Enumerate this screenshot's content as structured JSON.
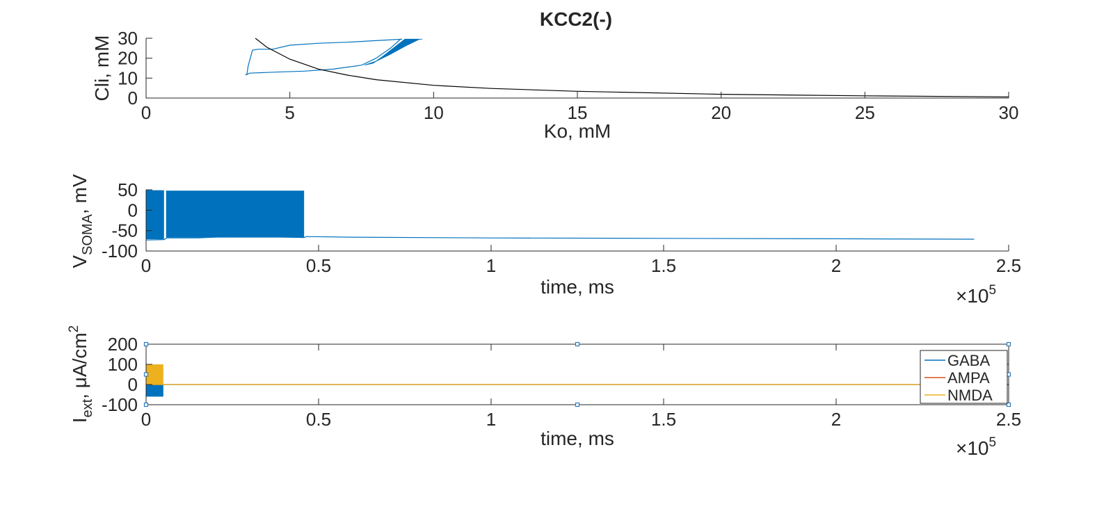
{
  "figure": {
    "title": "KCC2(-)",
    "background": "#ffffff",
    "axis_color": "#262626"
  },
  "chart_data": [
    {
      "type": "line",
      "id": "cli-vs-ko",
      "title": "KCC2(-)",
      "xlabel": "Ko, mM",
      "ylabel": "Cli, mM",
      "xlim": [
        0,
        30
      ],
      "ylim": [
        0,
        30
      ],
      "xticks": [
        0,
        5,
        10,
        15,
        20,
        25,
        30
      ],
      "yticks": [
        0,
        10,
        20,
        30
      ],
      "xtick_labels": [
        "0",
        "5",
        "10",
        "15",
        "20",
        "25",
        "30"
      ],
      "ytick_labels": [
        "0",
        "10",
        "20",
        "30"
      ],
      "grid": false,
      "series": [
        {
          "color": "#0072bd",
          "style": "trajectory",
          "x": [
            3.5,
            3.55,
            3.7,
            3.9,
            4.2,
            4.4,
            5.0,
            6.0,
            7.0,
            8.0,
            8.9,
            8.85,
            8.5,
            8.0,
            7.5,
            6.5,
            5.5,
            4.5,
            3.6,
            3.45
          ],
          "y": [
            11.5,
            16,
            24,
            24.5,
            24.5,
            24.5,
            26.5,
            27.5,
            28,
            28.8,
            29.5,
            29.5,
            25,
            20,
            16.5,
            14.5,
            13.5,
            13,
            12.5,
            11.5
          ]
        },
        {
          "color": "#0072bd",
          "style": "band",
          "x": [
            7.6,
            8.0,
            8.5,
            9.0,
            9.5,
            9.6,
            9.0,
            8.6,
            8.2,
            7.9
          ],
          "y": [
            16.5,
            18.5,
            22,
            26,
            29.5,
            29.5,
            29.5,
            25,
            20.5,
            17.5
          ]
        },
        {
          "color": "#000000",
          "style": "line",
          "x": [
            3.8,
            4.2,
            5,
            6,
            7,
            8,
            10,
            12,
            15,
            20,
            25,
            30
          ],
          "y": [
            30,
            25.5,
            19.5,
            14.5,
            11.5,
            9.2,
            6.4,
            4.8,
            3.4,
            1.9,
            1.1,
            0.6
          ]
        }
      ]
    },
    {
      "type": "line",
      "id": "vsoma-vs-time",
      "xlabel": "time, ms",
      "ylabel_main": "V",
      "ylabel_sub": "SOMA",
      "ylabel_tail": ", mV",
      "xlim": [
        0,
        250000
      ],
      "ylim": [
        -100,
        50
      ],
      "xticks": [
        0,
        50000,
        100000,
        150000,
        200000,
        250000
      ],
      "yticks": [
        -100,
        -50,
        0,
        50
      ],
      "xtick_labels": [
        "0",
        "0.5",
        "1",
        "1.5",
        "2",
        "2.5"
      ],
      "ytick_labels": [
        "-100",
        "-50",
        "0",
        "50"
      ],
      "exponent_label": "×10",
      "exponent_power": "5",
      "grid": false,
      "series": [
        {
          "color": "#0072bd",
          "spiking_bands": [
            {
              "x_start": 0,
              "x_end": 5200,
              "y_top": 49,
              "y_bottom": -71
            },
            {
              "x_start": 5800,
              "x_end": 45800,
              "y_top": 48,
              "y_bottom": -67
            }
          ],
          "x": [
            0,
            5200,
            6000,
            15000,
            25000,
            35000,
            45800,
            46500,
            60000,
            100000,
            150000,
            200000,
            240000
          ],
          "y": [
            -73,
            -72,
            -68,
            -68,
            -64,
            -65,
            -67,
            -64.5,
            -66,
            -68,
            -69,
            -70,
            -71
          ]
        }
      ]
    },
    {
      "type": "line",
      "id": "iext-vs-time",
      "xlabel": "time, ms",
      "ylabel_main": "I",
      "ylabel_sub": "ext",
      "ylabel_mid": ", μA/cm",
      "ylabel_sup": "2",
      "xlim": [
        0,
        250000
      ],
      "ylim": [
        -100,
        200
      ],
      "xticks": [
        0,
        50000,
        100000,
        150000,
        200000,
        250000
      ],
      "yticks": [
        -100,
        0,
        100,
        200
      ],
      "xtick_labels": [
        "0",
        "0.5",
        "1",
        "1.5",
        "2",
        "2.5"
      ],
      "ytick_labels": [
        "-100",
        "0",
        "100",
        "200"
      ],
      "exponent_label": "×10",
      "exponent_power": "5",
      "grid": false,
      "legend_position": "right",
      "selection_handles": true,
      "series": [
        {
          "name": "GABA",
          "color": "#0072bd",
          "burst": {
            "x_start": 0,
            "x_end": 5000,
            "y_top": 0,
            "y_bottom": -60
          },
          "x": [
            5000,
            250000
          ],
          "y": [
            0,
            0
          ]
        },
        {
          "name": "AMPA",
          "color": "#d95319",
          "x": [
            0,
            250000
          ],
          "y": [
            0,
            0
          ]
        },
        {
          "name": "NMDA",
          "color": "#edb120",
          "burst": {
            "x_start": 0,
            "x_end": 5000,
            "y_top": 100,
            "y_bottom": 0
          },
          "x": [
            0,
            250000
          ],
          "y": [
            0,
            0
          ]
        }
      ]
    }
  ]
}
